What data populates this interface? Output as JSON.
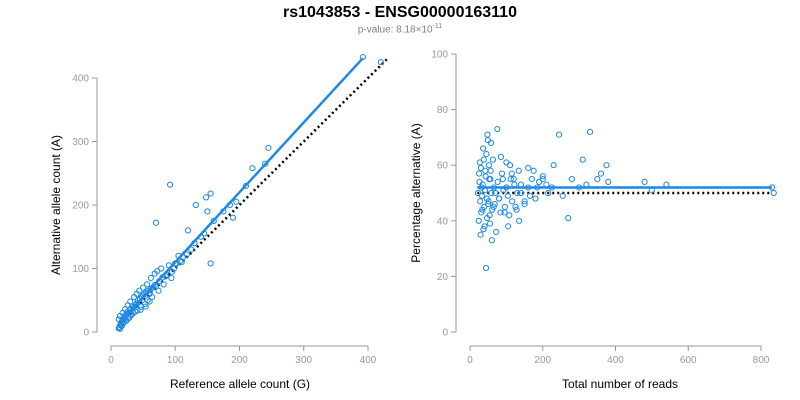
{
  "header": {
    "title": "rs1043853 - ENSG00000163110",
    "subtitle_prefix": "p-value: 8.18×10",
    "subtitle_exp": "-11"
  },
  "colors": {
    "points": "#1e88e5",
    "fit": "#1e88e5",
    "reference": "#000000",
    "axis": "#999999",
    "tick_text": "#999999",
    "label_text": "#000000"
  },
  "chart_data": [
    {
      "type": "scatter",
      "xlabel": "Reference allele count (G)",
      "ylabel": "Alternative allele count (A)",
      "xlim": [
        0,
        400
      ],
      "ylim": [
        0,
        400
      ],
      "xticks": [
        0,
        100,
        200,
        300,
        400
      ],
      "yticks": [
        0,
        100,
        200,
        300,
        400
      ],
      "grid": false,
      "fit_line": {
        "slope": 1.1,
        "intercept": 0,
        "x_range": [
          12,
          392
        ]
      },
      "reference_line": {
        "slope": 1.0,
        "intercept": 0,
        "x_range": [
          12,
          430
        ]
      },
      "x": [
        392,
        420,
        245,
        220,
        190,
        155,
        148,
        132,
        150,
        92,
        70,
        120,
        105,
        110,
        100,
        90,
        78,
        72,
        68,
        62,
        56,
        50,
        44,
        40,
        36,
        30,
        26,
        22,
        18,
        14,
        12,
        13,
        15,
        16,
        18,
        20,
        22,
        24,
        26,
        28,
        30,
        33,
        35,
        38,
        40,
        42,
        45,
        48,
        50,
        52,
        55,
        58,
        60,
        62,
        65,
        68,
        70,
        75,
        80,
        85,
        88,
        95,
        98,
        102,
        108,
        112,
        118,
        125,
        130,
        140,
        145,
        160,
        175,
        185,
        195,
        210,
        240,
        155,
        60,
        54,
        46,
        38,
        32,
        28,
        24,
        20,
        17,
        14,
        12,
        16,
        19,
        23,
        27,
        31,
        35,
        41,
        47,
        53,
        57,
        64,
        74,
        82,
        94
      ],
      "y": [
        433,
        425,
        290,
        258,
        180,
        218,
        212,
        200,
        190,
        232,
        172,
        160,
        120,
        110,
        108,
        105,
        100,
        96,
        92,
        85,
        75,
        70,
        65,
        60,
        55,
        48,
        42,
        36,
        30,
        25,
        20,
        8,
        12,
        15,
        20,
        22,
        26,
        28,
        32,
        30,
        36,
        40,
        38,
        42,
        45,
        50,
        52,
        55,
        58,
        60,
        62,
        65,
        60,
        68,
        70,
        74,
        72,
        80,
        86,
        88,
        90,
        95,
        100,
        108,
        112,
        118,
        122,
        130,
        140,
        150,
        155,
        175,
        190,
        200,
        205,
        230,
        265,
        108,
        48,
        40,
        35,
        32,
        28,
        22,
        18,
        15,
        10,
        5,
        6,
        10,
        14,
        18,
        22,
        26,
        30,
        34,
        40,
        44,
        50,
        55,
        65,
        75,
        85
      ]
    },
    {
      "type": "scatter",
      "xlabel": "Total number of reads",
      "ylabel": "Percentage alternative (A)",
      "xlim": [
        0,
        800
      ],
      "ylim": [
        0,
        100
      ],
      "xticks": [
        0,
        200,
        400,
        600,
        800
      ],
      "yticks": [
        0,
        20,
        40,
        60,
        80,
        100
      ],
      "grid": false,
      "fit_line": {
        "y": 52,
        "x_range": [
          20,
          830
        ]
      },
      "reference_line": {
        "y": 50,
        "x_range": [
          20,
          830
        ]
      },
      "x": [
        830,
        835,
        540,
        480,
        500,
        310,
        330,
        350,
        375,
        380,
        360,
        300,
        270,
        245,
        230,
        210,
        200,
        185,
        175,
        165,
        160,
        150,
        140,
        135,
        130,
        125,
        120,
        115,
        110,
        105,
        100,
        95,
        90,
        85,
        80,
        75,
        70,
        65,
        60,
        58,
        56,
        54,
        52,
        50,
        48,
        46,
        44,
        42,
        40,
        38,
        36,
        34,
        32,
        30,
        28,
        26,
        24,
        22,
        25,
        27,
        29,
        31,
        33,
        35,
        37,
        39,
        41,
        43,
        45,
        47,
        49,
        51,
        53,
        55,
        57,
        59,
        61,
        63,
        66,
        68,
        72,
        76,
        80,
        84,
        88,
        92,
        96,
        100,
        104,
        108,
        112,
        116,
        122,
        128,
        134,
        140,
        150,
        160,
        170,
        180,
        190,
        200,
        215,
        225,
        255,
        280,
        320
      ],
      "y": [
        52,
        50,
        53,
        54,
        51,
        62,
        72,
        55,
        60,
        54,
        57,
        52,
        41,
        71,
        60,
        53,
        55,
        52,
        58,
        49,
        59,
        47,
        53,
        40,
        50,
        45,
        55,
        57,
        60,
        38,
        52,
        43,
        55,
        63,
        48,
        73,
        50,
        45,
        33,
        68,
        55,
        42,
        60,
        46,
        71,
        48,
        23,
        58,
        38,
        62,
        66,
        44,
        52,
        59,
        47,
        54,
        40,
        50,
        57,
        61,
        35,
        43,
        49,
        53,
        37,
        45,
        51,
        56,
        64,
        41,
        69,
        47,
        55,
        39,
        58,
        50,
        44,
        62,
        52,
        46,
        36,
        54,
        48,
        43,
        57,
        51,
        45,
        61,
        49,
        42,
        55,
        47,
        53,
        44,
        58,
        50,
        46,
        52,
        55,
        48,
        54,
        56,
        50,
        52,
        49,
        55,
        53
      ]
    }
  ]
}
